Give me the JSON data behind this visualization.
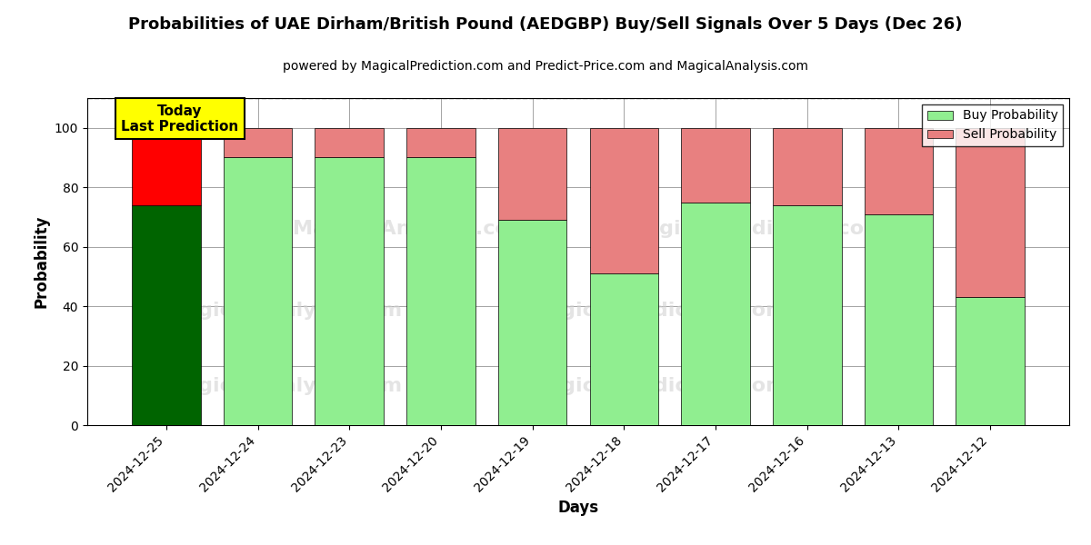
{
  "title": "Probabilities of UAE Dirham/British Pound (AEDGBP) Buy/Sell Signals Over 5 Days (Dec 26)",
  "subtitle": "powered by MagicalPrediction.com and Predict-Price.com and MagicalAnalysis.com",
  "xlabel": "Days",
  "ylabel": "Probability",
  "categories": [
    "2024-12-25",
    "2024-12-24",
    "2024-12-23",
    "2024-12-20",
    "2024-12-19",
    "2024-12-18",
    "2024-12-17",
    "2024-12-16",
    "2024-12-13",
    "2024-12-12"
  ],
  "buy_values": [
    74,
    90,
    90,
    90,
    69,
    51,
    75,
    74,
    71,
    43
  ],
  "sell_values": [
    26,
    10,
    10,
    10,
    31,
    49,
    25,
    26,
    29,
    57
  ],
  "buy_colors": [
    "#006400",
    "#90EE90",
    "#90EE90",
    "#90EE90",
    "#90EE90",
    "#90EE90",
    "#90EE90",
    "#90EE90",
    "#90EE90",
    "#90EE90"
  ],
  "sell_colors": [
    "#FF0000",
    "#E88080",
    "#E88080",
    "#E88080",
    "#E88080",
    "#E88080",
    "#E88080",
    "#E88080",
    "#E88080",
    "#E88080"
  ],
  "today_label": "Today\nLast Prediction",
  "today_bg": "#FFFF00",
  "legend_buy_label": "Buy Probability",
  "legend_sell_label": "Sell Probability",
  "legend_buy_color": "#90EE90",
  "legend_sell_color": "#E88080",
  "ylim": [
    0,
    110
  ],
  "dashed_line_y": 110,
  "figsize": [
    12.0,
    6.0
  ],
  "dpi": 100
}
